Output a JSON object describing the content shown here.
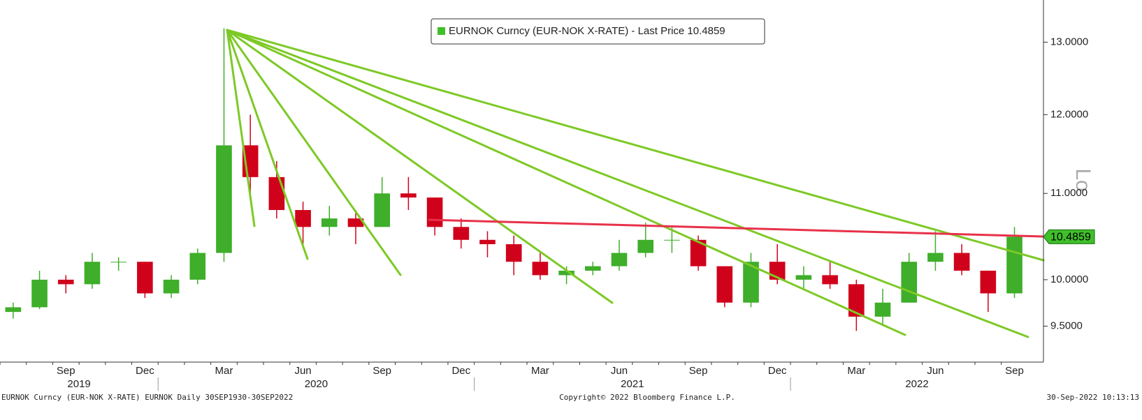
{
  "chart_data": {
    "type": "candlestick",
    "log_scale": true,
    "axis_label": "Lo",
    "x": [
      "2019-07",
      "2019-08",
      "2019-09",
      "2019-10",
      "2019-11",
      "2019-12",
      "2020-01",
      "2020-02",
      "2020-03",
      "2020-04",
      "2020-05",
      "2020-06",
      "2020-07",
      "2020-08",
      "2020-09",
      "2020-10",
      "2020-11",
      "2020-12",
      "2021-01",
      "2021-02",
      "2021-03",
      "2021-04",
      "2021-05",
      "2021-06",
      "2021-07",
      "2021-08",
      "2021-09",
      "2021-10",
      "2021-11",
      "2021-12",
      "2022-01",
      "2022-02",
      "2022-03",
      "2022-04",
      "2022-05",
      "2022-06",
      "2022-07",
      "2022-08",
      "2022-09"
    ],
    "series": [
      {
        "name": "EURNOK Curncy (EUR-NOK X-RATE) - Last Price 10.4859",
        "up_color": "#3fae2a",
        "down_color": "#d0021b",
        "legend_color": "#3fbf2a",
        "open": [
          9.65,
          9.7,
          10.0,
          9.95,
          10.2,
          10.2,
          9.85,
          10.0,
          10.3,
          11.6,
          11.2,
          10.8,
          10.6,
          10.7,
          10.6,
          11.0,
          10.95,
          10.6,
          10.45,
          10.4,
          10.2,
          10.05,
          10.1,
          10.15,
          10.3,
          10.45,
          10.45,
          10.15,
          9.75,
          10.2,
          10.0,
          10.05,
          9.95,
          9.6,
          9.75,
          10.2,
          10.3,
          10.1,
          9.85
        ],
        "high": [
          9.75,
          10.1,
          10.05,
          10.3,
          10.25,
          10.2,
          10.05,
          10.35,
          13.2,
          12.0,
          11.4,
          10.9,
          10.85,
          10.8,
          11.2,
          11.2,
          10.95,
          10.7,
          10.55,
          10.5,
          10.3,
          10.15,
          10.2,
          10.45,
          10.65,
          10.6,
          10.5,
          10.15,
          10.3,
          10.4,
          10.15,
          10.2,
          10.0,
          9.9,
          10.3,
          10.55,
          10.4,
          10.1,
          10.6
        ],
        "low": [
          9.58,
          9.68,
          9.85,
          9.9,
          10.1,
          9.8,
          9.8,
          9.95,
          10.2,
          11.0,
          10.7,
          10.4,
          10.5,
          10.4,
          10.6,
          10.8,
          10.5,
          10.35,
          10.25,
          10.05,
          10.0,
          9.95,
          10.05,
          10.1,
          10.25,
          10.3,
          10.1,
          9.7,
          9.7,
          9.95,
          9.9,
          9.9,
          9.45,
          9.5,
          9.75,
          10.1,
          10.05,
          9.65,
          9.8
        ],
        "close": [
          9.7,
          10.0,
          9.95,
          10.2,
          10.2,
          9.85,
          10.0,
          10.3,
          11.6,
          11.2,
          10.8,
          10.6,
          10.7,
          10.6,
          11.0,
          10.95,
          10.6,
          10.45,
          10.4,
          10.2,
          10.05,
          10.1,
          10.15,
          10.3,
          10.45,
          10.45,
          10.15,
          9.75,
          10.2,
          10.0,
          10.05,
          9.95,
          9.6,
          9.75,
          10.2,
          10.3,
          10.1,
          9.85,
          10.4859
        ]
      }
    ],
    "last_price": 10.4859,
    "ylim": [
      9.13,
      13.62
    ],
    "yticks": [
      {
        "value": 9.5,
        "label": "9.5000"
      },
      {
        "value": 10,
        "label": "10.0000"
      },
      {
        "value": 11,
        "label": "11.0000"
      },
      {
        "value": 12,
        "label": "12.0000"
      },
      {
        "value": 13,
        "label": "13.0000"
      }
    ],
    "xticks": [
      {
        "value": "2019-09",
        "label": "Sep"
      },
      {
        "value": "2019-12",
        "label": "Dec"
      },
      {
        "value": "2020-03",
        "label": "Mar"
      },
      {
        "value": "2020-06",
        "label": "Jun"
      },
      {
        "value": "2020-09",
        "label": "Sep"
      },
      {
        "value": "2020-12",
        "label": "Dec"
      },
      {
        "value": "2021-03",
        "label": "Mar"
      },
      {
        "value": "2021-06",
        "label": "Jun"
      },
      {
        "value": "2021-09",
        "label": "Sep"
      },
      {
        "value": "2021-12",
        "label": "Dec"
      },
      {
        "value": "2022-03",
        "label": "Mar"
      },
      {
        "value": "2022-06",
        "label": "Jun"
      },
      {
        "value": "2022-09",
        "label": "Sep"
      }
    ],
    "years": [
      "2019",
      "2020",
      "2021",
      "2022"
    ],
    "footer_left": "EURNOK Curncy (EUR-NOK X-RATE) EURNOK  Daily 30SEP1930-30SEP2022",
    "footer_center": "Copyright© 2022 Bloomberg Finance L.P.",
    "footer_right": "30-Sep-2022 10:13:13"
  }
}
